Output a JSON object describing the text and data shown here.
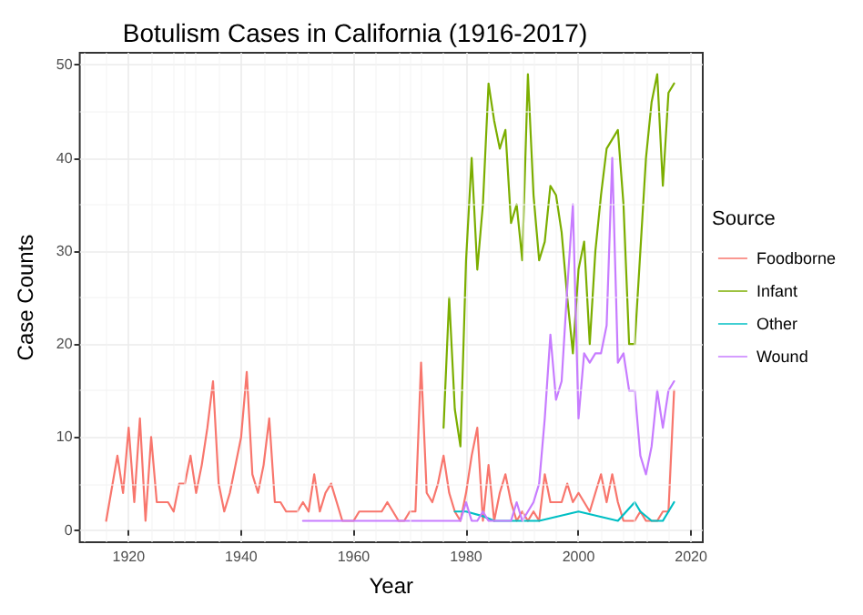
{
  "chart_data": {
    "type": "line",
    "title": "Botulism Cases in California (1916-2017)",
    "xlabel": "Year",
    "ylabel": "Case Counts",
    "legend_title": "Source",
    "xlim": [
      1911.3,
      2022.1
    ],
    "ylim": [
      -1.3,
      51.3
    ],
    "xticks": [
      1920,
      1940,
      1960,
      1980,
      2000,
      2020
    ],
    "yticks": [
      0,
      10,
      20,
      30,
      40,
      50
    ],
    "grid": true,
    "legend": "right",
    "marker": "none",
    "line_style": "solid",
    "series": [
      {
        "name": "Foodborne",
        "color": "#f8766d",
        "x": [
          1916,
          1918,
          1919,
          1920,
          1921,
          1922,
          1923,
          1924,
          1925,
          1926,
          1927,
          1928,
          1929,
          1930,
          1931,
          1932,
          1933,
          1934,
          1935,
          1936,
          1937,
          1938,
          1939,
          1940,
          1941,
          1942,
          1943,
          1944,
          1945,
          1946,
          1947,
          1948,
          1949,
          1950,
          1951,
          1952,
          1953,
          1954,
          1955,
          1956,
          1957,
          1958,
          1959,
          1960,
          1961,
          1962,
          1963,
          1964,
          1965,
          1966,
          1967,
          1968,
          1969,
          1970,
          1971,
          1972,
          1973,
          1974,
          1975,
          1976,
          1977,
          1978,
          1979,
          1980,
          1981,
          1982,
          1983,
          1984,
          1985,
          1986,
          1987,
          1988,
          1989,
          1990,
          1991,
          1992,
          1993,
          1994,
          1995,
          1996,
          1997,
          1998,
          1999,
          2000,
          2001,
          2002,
          2003,
          2004,
          2005,
          2006,
          2007,
          2008,
          2009,
          2010,
          2011,
          2012,
          2013,
          2014,
          2015,
          2016,
          2017
        ],
        "values": [
          1,
          8,
          4,
          11,
          3,
          12,
          1,
          10,
          3,
          3,
          3,
          2,
          5,
          5,
          8,
          4,
          7,
          11,
          16,
          5,
          2,
          4,
          7,
          10,
          17,
          6,
          4,
          7,
          12,
          3,
          3,
          2,
          2,
          2,
          3,
          2,
          6,
          2,
          4,
          5,
          3,
          1,
          1,
          1,
          2,
          2,
          2,
          2,
          2,
          3,
          2,
          1,
          1,
          2,
          2,
          18,
          4,
          3,
          5,
          8,
          4,
          2,
          1,
          4,
          8,
          11,
          1,
          7,
          1,
          4,
          6,
          3,
          1,
          2,
          1,
          2,
          1,
          6,
          3,
          3,
          3,
          5,
          3,
          4,
          3,
          2,
          4,
          6,
          3,
          6,
          3,
          1,
          1,
          1,
          2,
          1,
          1,
          1,
          2,
          2,
          15
        ]
      },
      {
        "name": "Infant",
        "color": "#7cae00",
        "x": [
          1976,
          1977,
          1978,
          1979,
          1980,
          1981,
          1982,
          1983,
          1984,
          1985,
          1986,
          1987,
          1988,
          1989,
          1990,
          1991,
          1992,
          1993,
          1994,
          1995,
          1996,
          1997,
          1998,
          1999,
          2000,
          2001,
          2002,
          2003,
          2004,
          2005,
          2006,
          2007,
          2008,
          2009,
          2010,
          2011,
          2012,
          2013,
          2014,
          2015,
          2016,
          2017
        ],
        "values": [
          11,
          25,
          13,
          9,
          29,
          40,
          28,
          35,
          48,
          44,
          41,
          43,
          33,
          35,
          29,
          49,
          36,
          29,
          31,
          37,
          36,
          32,
          25,
          19,
          28,
          31,
          20,
          30,
          36,
          41,
          42,
          43,
          35,
          20,
          20,
          30,
          40,
          46,
          49,
          37,
          47,
          48
        ]
      },
      {
        "name": "Other",
        "color": "#00bfc4",
        "x": [
          1978,
          1980,
          1983,
          1985,
          1988,
          1990,
          1993,
          2000,
          2007,
          2010,
          2011,
          2013,
          2015,
          2016,
          2017
        ],
        "values": [
          2,
          2,
          1.5,
          1,
          1,
          1,
          1,
          2,
          1,
          3,
          2,
          1,
          1,
          2,
          3
        ]
      },
      {
        "name": "Wound",
        "color": "#c77cff",
        "x": [
          1951,
          1955,
          1960,
          1965,
          1970,
          1975,
          1979,
          1980,
          1981,
          1982,
          1983,
          1984,
          1985,
          1986,
          1987,
          1988,
          1989,
          1990,
          1991,
          1992,
          1993,
          1994,
          1995,
          1996,
          1997,
          1998,
          1999,
          2000,
          2001,
          2002,
          2003,
          2004,
          2005,
          2006,
          2007,
          2008,
          2009,
          2010,
          2011,
          2012,
          2013,
          2014,
          2015,
          2016,
          2017
        ],
        "values": [
          1,
          1,
          1,
          1,
          1,
          1,
          1,
          3,
          1,
          1,
          2,
          1,
          1,
          1,
          1,
          1,
          3,
          1,
          2,
          3,
          5,
          12,
          21,
          14,
          16,
          26,
          35,
          12,
          19,
          18,
          19,
          19,
          22,
          40,
          18,
          19,
          15,
          15,
          8,
          6,
          9,
          15,
          11,
          15,
          16
        ]
      }
    ]
  }
}
